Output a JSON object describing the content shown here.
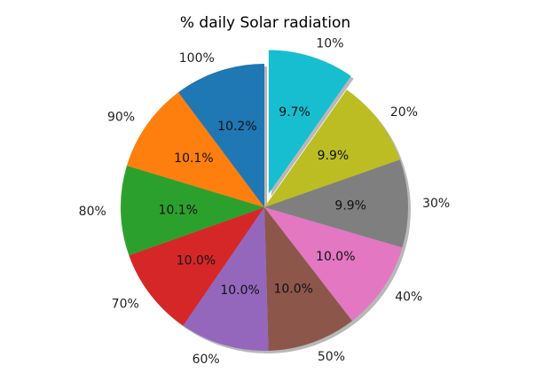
{
  "chart_data": {
    "type": "pie",
    "title": "% daily Solar radiation",
    "slices": [
      {
        "label": "10%",
        "value": 9.7,
        "pct_text": "9.7%",
        "color": "#17becf",
        "exploded": true
      },
      {
        "label": "20%",
        "value": 9.9,
        "pct_text": "9.9%",
        "color": "#bcbd22"
      },
      {
        "label": "30%",
        "value": 9.9,
        "pct_text": "9.9%",
        "color": "#7f7f7f"
      },
      {
        "label": "40%",
        "value": 10.0,
        "pct_text": "10.0%",
        "color": "#e377c2"
      },
      {
        "label": "50%",
        "value": 10.0,
        "pct_text": "10.0%",
        "color": "#8c564b"
      },
      {
        "label": "60%",
        "value": 10.0,
        "pct_text": "10.0%",
        "color": "#9467bd"
      },
      {
        "label": "70%",
        "value": 10.0,
        "pct_text": "10.0%",
        "color": "#d62728"
      },
      {
        "label": "80%",
        "value": 10.1,
        "pct_text": "10.1%",
        "color": "#2ca02c"
      },
      {
        "label": "90%",
        "value": 10.1,
        "pct_text": "10.1%",
        "color": "#ff7f0e"
      },
      {
        "label": "100%",
        "value": 10.2,
        "pct_text": "10.2%",
        "color": "#1f77b4"
      }
    ],
    "start_angle_deg": 90,
    "direction": "clockwise",
    "shadow": true
  }
}
